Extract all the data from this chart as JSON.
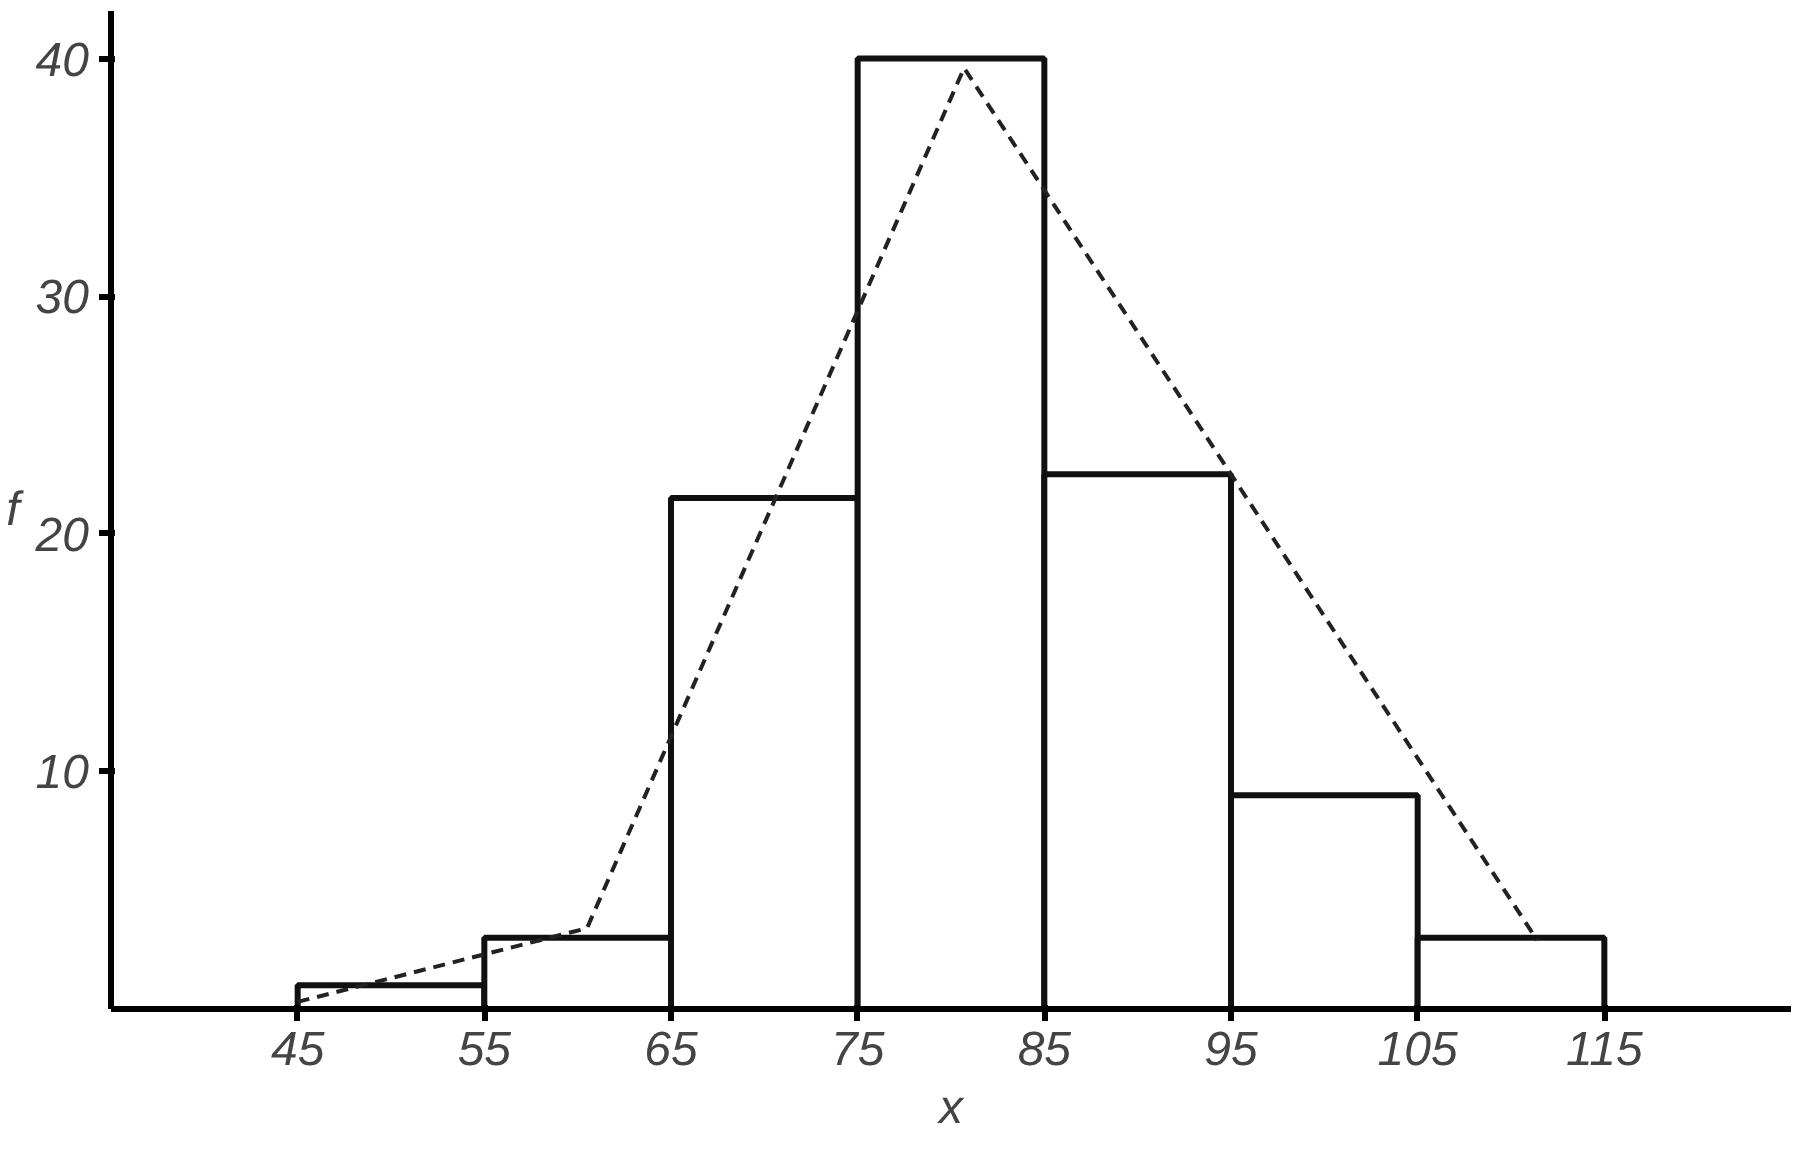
{
  "chart_data": {
    "type": "histogram",
    "xlabel": "x",
    "ylabel": "f",
    "bins": [
      45,
      55,
      65,
      75,
      85,
      95,
      105,
      115
    ],
    "values": [
      1,
      3,
      21.5,
      40,
      22.5,
      9,
      3
    ],
    "color": "#ffffff",
    "series": [
      {
        "type": "line",
        "line_style": "dashed",
        "color": "#222222",
        "x": [
          45,
          60.5,
          80.7,
          111.4
        ],
        "values": [
          0.3,
          3.4,
          39.6,
          2.9
        ]
      }
    ],
    "xlim": [
      35,
      125
    ],
    "ylim": [
      0,
      42
    ],
    "xticks": [
      45,
      55,
      65,
      75,
      85,
      95,
      105,
      115
    ],
    "yticks": [
      10,
      20,
      30,
      40
    ],
    "grid": false
  }
}
